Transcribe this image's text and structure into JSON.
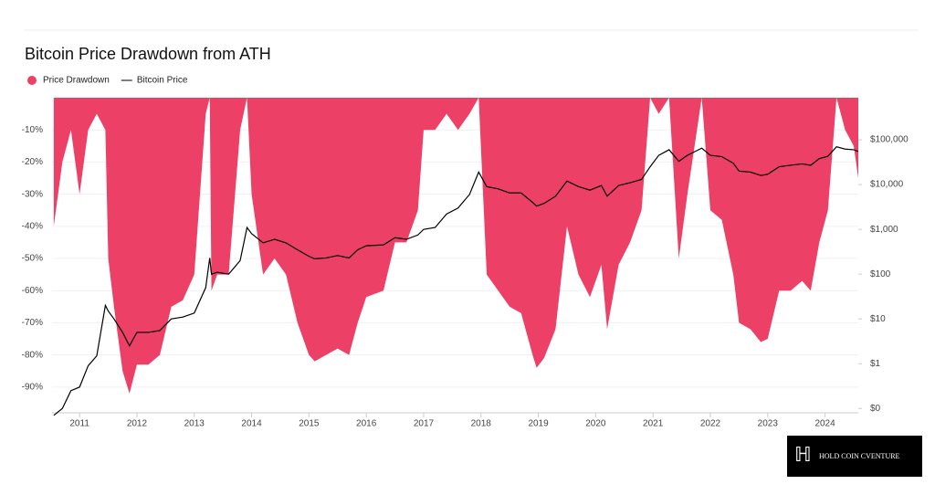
{
  "chart_data": {
    "type": "area-line",
    "title": "Bitcoin Price Drawdown from ATH",
    "x": [
      2010.55,
      2010.7,
      2010.85,
      2011.0,
      2011.15,
      2011.3,
      2011.45,
      2011.5,
      2011.6,
      2011.75,
      2011.87,
      2012.0,
      2012.2,
      2012.4,
      2012.6,
      2012.8,
      2013.0,
      2013.2,
      2013.27,
      2013.3,
      2013.4,
      2013.6,
      2013.8,
      2013.92,
      2014.0,
      2014.2,
      2014.4,
      2014.6,
      2014.8,
      2015.0,
      2015.1,
      2015.3,
      2015.5,
      2015.7,
      2015.85,
      2016.0,
      2016.3,
      2016.5,
      2016.7,
      2016.9,
      2017.0,
      2017.2,
      2017.4,
      2017.6,
      2017.8,
      2017.96,
      2018.1,
      2018.3,
      2018.5,
      2018.7,
      2018.9,
      2018.97,
      2019.1,
      2019.3,
      2019.5,
      2019.7,
      2019.9,
      2020.1,
      2020.2,
      2020.4,
      2020.6,
      2020.8,
      2020.95,
      2021.1,
      2021.28,
      2021.45,
      2021.6,
      2021.85,
      2022.0,
      2022.2,
      2022.4,
      2022.5,
      2022.7,
      2022.88,
      2023.0,
      2023.2,
      2023.4,
      2023.6,
      2023.75,
      2023.9,
      2024.05,
      2024.2,
      2024.35,
      2024.5,
      2024.58
    ],
    "series": [
      {
        "name": "Price Drawdown",
        "color": "#ec4067",
        "axis": "y",
        "values": [
          -40,
          -20,
          -10,
          -30,
          -10,
          -5,
          -10,
          -50,
          -65,
          -85,
          -92,
          -83,
          -83,
          -80,
          -65,
          -63,
          -55,
          -5,
          0,
          -60,
          -55,
          -55,
          -10,
          0,
          -30,
          -55,
          -50,
          -55,
          -70,
          -80,
          -82,
          -80,
          -78,
          -80,
          -70,
          -62,
          -60,
          -45,
          -45,
          -35,
          -10,
          -10,
          -5,
          -10,
          -5,
          0,
          -55,
          -60,
          -65,
          -67,
          -80,
          -84,
          -81,
          -72,
          -40,
          -55,
          -62,
          -52,
          -72,
          -52,
          -45,
          -35,
          0,
          -5,
          0,
          -50,
          -30,
          0,
          -35,
          -38,
          -55,
          -70,
          -72,
          -76,
          -75,
          -60,
          -60,
          -57,
          -60,
          -45,
          -35,
          0,
          -10,
          -15,
          -25
        ]
      },
      {
        "name": "Bitcoin Price",
        "color": "#000000",
        "axis": "y2",
        "values": [
          0.07,
          0.1,
          0.25,
          0.3,
          0.9,
          1.5,
          20,
          15,
          10,
          5,
          2.5,
          5,
          5,
          5.5,
          10,
          11,
          13.5,
          50,
          230,
          100,
          110,
          100,
          200,
          1100,
          800,
          500,
          600,
          500,
          350,
          250,
          220,
          230,
          260,
          230,
          350,
          430,
          450,
          650,
          600,
          750,
          1000,
          1100,
          2200,
          3000,
          6000,
          19000,
          9000,
          8000,
          6500,
          6500,
          4000,
          3300,
          3800,
          5500,
          12000,
          9000,
          7500,
          9500,
          5500,
          9500,
          11000,
          13000,
          25000,
          45000,
          60000,
          33000,
          45000,
          65000,
          45000,
          42000,
          30000,
          20000,
          19000,
          16000,
          17000,
          25000,
          27000,
          29000,
          27000,
          38000,
          43000,
          70000,
          62000,
          60000,
          55000
        ]
      }
    ],
    "xlim": [
      2010.52,
      2024.58
    ],
    "xticks": [
      2011,
      2012,
      2013,
      2014,
      2015,
      2016,
      2017,
      2018,
      2019,
      2020,
      2021,
      2022,
      2023,
      2024
    ],
    "ylim": [
      -98,
      0
    ],
    "yticks": [
      {
        "value": -10,
        "label": "-10%"
      },
      {
        "value": -20,
        "label": "-20%"
      },
      {
        "value": -30,
        "label": "-30%"
      },
      {
        "value": -40,
        "label": "-40%"
      },
      {
        "value": -50,
        "label": "-50%"
      },
      {
        "value": -60,
        "label": "-60%"
      },
      {
        "value": -70,
        "label": "-70%"
      },
      {
        "value": -80,
        "label": "-80%"
      },
      {
        "value": -90,
        "label": "-90%"
      }
    ],
    "y2lim": [
      0.08,
      870000
    ],
    "y2log": true,
    "y2ticks": [
      {
        "value": 0.1,
        "label": "$0"
      },
      {
        "value": 1,
        "label": "$1"
      },
      {
        "value": 10,
        "label": "$10"
      },
      {
        "value": 100,
        "label": "$100"
      },
      {
        "value": 1000,
        "label": "$1,000"
      },
      {
        "value": 10000,
        "label": "$10,000"
      },
      {
        "value": 100000,
        "label": "$100,000"
      }
    ],
    "grid": true,
    "legend": "top-left"
  },
  "watermark": "HOLD COIN CVENTURE"
}
